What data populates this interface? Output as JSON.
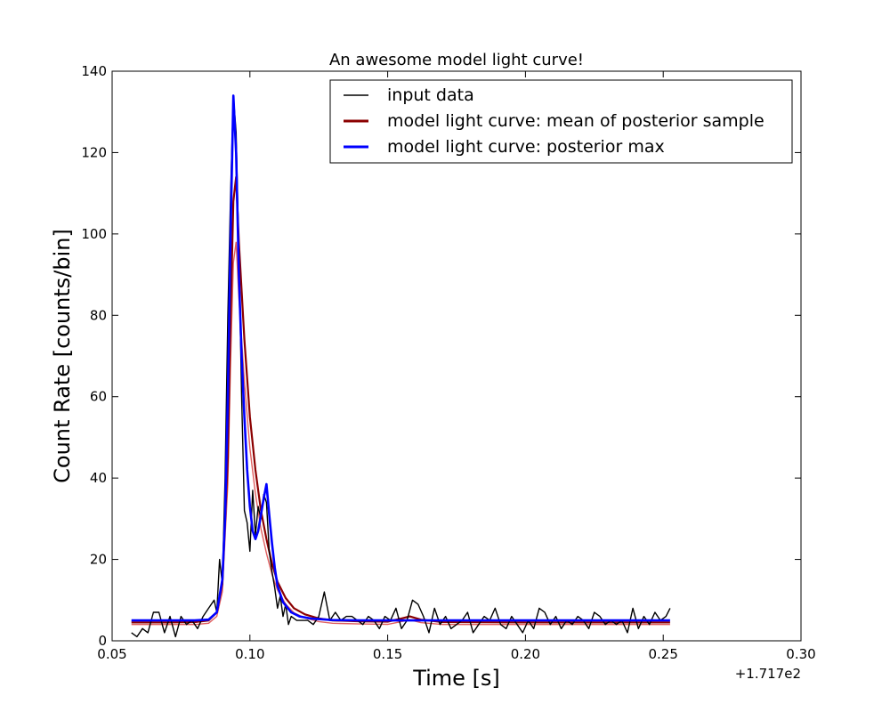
{
  "chart_data": {
    "type": "line",
    "title": "An awesome model light curve!",
    "xlabel": "Time [s]",
    "ylabel": "Count Rate [counts/bin]",
    "x_offset_label": "+1.717e2",
    "xlim": [
      0.05,
      0.3
    ],
    "ylim": [
      0,
      140
    ],
    "xticks": [
      0.05,
      0.1,
      0.15,
      0.2,
      0.25,
      0.3
    ],
    "xtick_labels": [
      "0.05",
      "0.10",
      "0.15",
      "0.20",
      "0.25",
      "0.30"
    ],
    "yticks": [
      0,
      20,
      40,
      60,
      80,
      100,
      120,
      140
    ],
    "ytick_labels": [
      "0",
      "20",
      "40",
      "60",
      "80",
      "100",
      "120",
      "140"
    ],
    "legend_position": "top-right",
    "grid": false,
    "series": [
      {
        "name": "input data",
        "color": "#000000",
        "x": [
          0.057,
          0.059,
          0.061,
          0.063,
          0.065,
          0.067,
          0.069,
          0.071,
          0.073,
          0.075,
          0.077,
          0.079,
          0.081,
          0.083,
          0.085,
          0.087,
          0.088,
          0.089,
          0.09,
          0.091,
          0.092,
          0.093,
          0.094,
          0.095,
          0.096,
          0.097,
          0.098,
          0.099,
          0.1,
          0.101,
          0.102,
          0.103,
          0.104,
          0.105,
          0.106,
          0.107,
          0.108,
          0.109,
          0.11,
          0.111,
          0.112,
          0.113,
          0.114,
          0.115,
          0.117,
          0.119,
          0.121,
          0.123,
          0.125,
          0.127,
          0.129,
          0.131,
          0.133,
          0.135,
          0.137,
          0.139,
          0.141,
          0.143,
          0.145,
          0.147,
          0.149,
          0.151,
          0.153,
          0.155,
          0.157,
          0.159,
          0.161,
          0.163,
          0.165,
          0.167,
          0.169,
          0.171,
          0.173,
          0.175,
          0.177,
          0.179,
          0.181,
          0.183,
          0.185,
          0.187,
          0.189,
          0.191,
          0.193,
          0.195,
          0.197,
          0.199,
          0.201,
          0.203,
          0.205,
          0.207,
          0.209,
          0.211,
          0.213,
          0.215,
          0.217,
          0.219,
          0.221,
          0.223,
          0.225,
          0.227,
          0.229,
          0.231,
          0.233,
          0.235,
          0.237,
          0.239,
          0.241,
          0.243,
          0.245,
          0.247,
          0.249,
          0.251,
          0.2525
        ],
        "y": [
          2,
          1,
          3,
          2,
          7,
          7,
          2,
          6,
          1,
          6,
          4,
          5,
          3,
          6,
          8,
          10,
          7,
          20,
          14,
          40,
          80,
          110,
          134,
          125,
          95,
          60,
          32,
          29,
          22,
          37,
          26,
          33,
          30,
          36,
          34,
          22,
          17,
          13,
          8,
          11,
          6,
          9,
          4,
          6,
          5,
          5,
          5,
          4,
          6,
          12,
          5,
          7,
          5,
          6,
          6,
          5,
          4,
          6,
          5,
          3,
          6,
          5,
          8,
          3,
          5,
          10,
          9,
          6,
          2,
          8,
          4,
          6,
          3,
          4,
          5,
          7,
          2,
          4,
          6,
          5,
          8,
          4,
          3,
          6,
          4,
          2,
          5,
          3,
          8,
          7,
          4,
          6,
          3,
          5,
          4,
          6,
          5,
          3,
          7,
          6,
          4,
          5,
          4,
          5,
          2,
          8,
          3,
          6,
          4,
          7,
          5,
          6,
          8
        ]
      },
      {
        "name": "model light curve: mean of posterior sample",
        "color": "#8b0000",
        "x": [
          0.057,
          0.07,
          0.08,
          0.085,
          0.088,
          0.09,
          0.092,
          0.093,
          0.094,
          0.095,
          0.096,
          0.098,
          0.1,
          0.102,
          0.104,
          0.106,
          0.108,
          0.11,
          0.113,
          0.116,
          0.12,
          0.125,
          0.13,
          0.14,
          0.15,
          0.155,
          0.158,
          0.162,
          0.17,
          0.2,
          0.23,
          0.2525
        ],
        "y": [
          4.5,
          4.5,
          4.6,
          5.0,
          7.0,
          14.0,
          45.0,
          80.0,
          108.0,
          114.0,
          98.0,
          74.0,
          55.0,
          42.0,
          32.0,
          25.0,
          19.0,
          14.5,
          10.5,
          8.0,
          6.5,
          5.5,
          5.0,
          4.8,
          4.7,
          5.5,
          6.0,
          5.2,
          4.6,
          4.5,
          4.5,
          4.5
        ]
      },
      {
        "name": "model light curve: posterior max",
        "color": "#0000ff",
        "x": [
          0.057,
          0.07,
          0.08,
          0.085,
          0.088,
          0.09,
          0.091,
          0.092,
          0.093,
          0.094,
          0.095,
          0.096,
          0.097,
          0.098,
          0.099,
          0.1,
          0.101,
          0.102,
          0.103,
          0.104,
          0.105,
          0.106,
          0.107,
          0.108,
          0.109,
          0.11,
          0.112,
          0.115,
          0.118,
          0.122,
          0.13,
          0.14,
          0.15,
          0.2,
          0.2525
        ],
        "y": [
          5.0,
          5.0,
          5.0,
          5.2,
          7.0,
          15.0,
          30.0,
          60.0,
          100.0,
          134.0,
          120.0,
          90.0,
          70.0,
          55.0,
          42.0,
          33.0,
          27.0,
          25.0,
          27.0,
          31.0,
          35.0,
          38.5,
          31.0,
          24.0,
          18.0,
          13.5,
          9.5,
          7.0,
          6.0,
          5.5,
          5.1,
          5.0,
          5.0,
          5.0,
          5.0
        ]
      }
    ]
  }
}
